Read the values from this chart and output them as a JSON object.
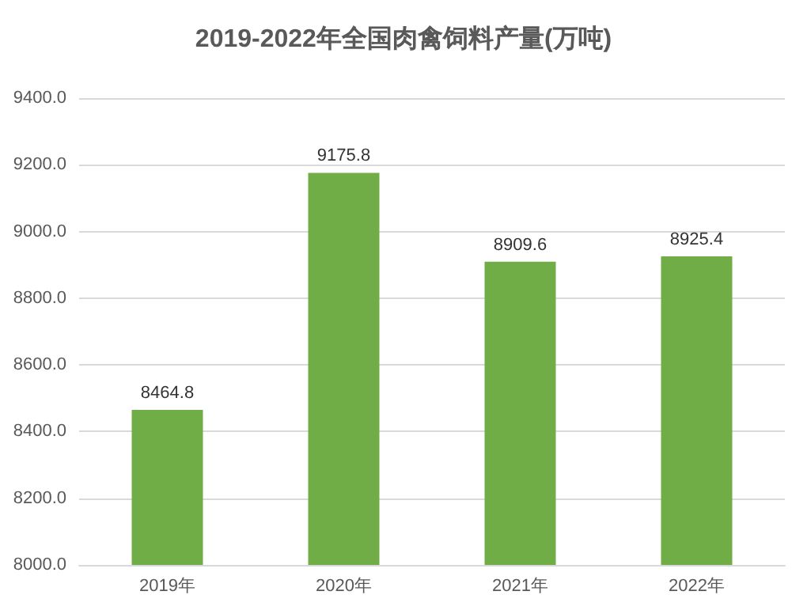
{
  "chart_data": {
    "type": "bar",
    "title": "2019-2022年全国肉禽饲料产量(万吨)",
    "categories": [
      "2019年",
      "2020年",
      "2021年",
      "2022年"
    ],
    "values": [
      8464.8,
      9175.8,
      8909.6,
      8925.4
    ],
    "color": "#70ad47",
    "ylim": [
      8000,
      9400
    ],
    "yticks": [
      {
        "value": 8000,
        "label": "8000.0"
      },
      {
        "value": 8200,
        "label": "8200.0"
      },
      {
        "value": 8400,
        "label": "8400.0"
      },
      {
        "value": 8600,
        "label": "8600.0"
      },
      {
        "value": 8800,
        "label": "8800.0"
      },
      {
        "value": 9000,
        "label": "9000.0"
      },
      {
        "value": 9200,
        "label": "9200.0"
      },
      {
        "value": 9400,
        "label": "9400.0"
      }
    ],
    "grid": "y",
    "data_labels": true
  }
}
